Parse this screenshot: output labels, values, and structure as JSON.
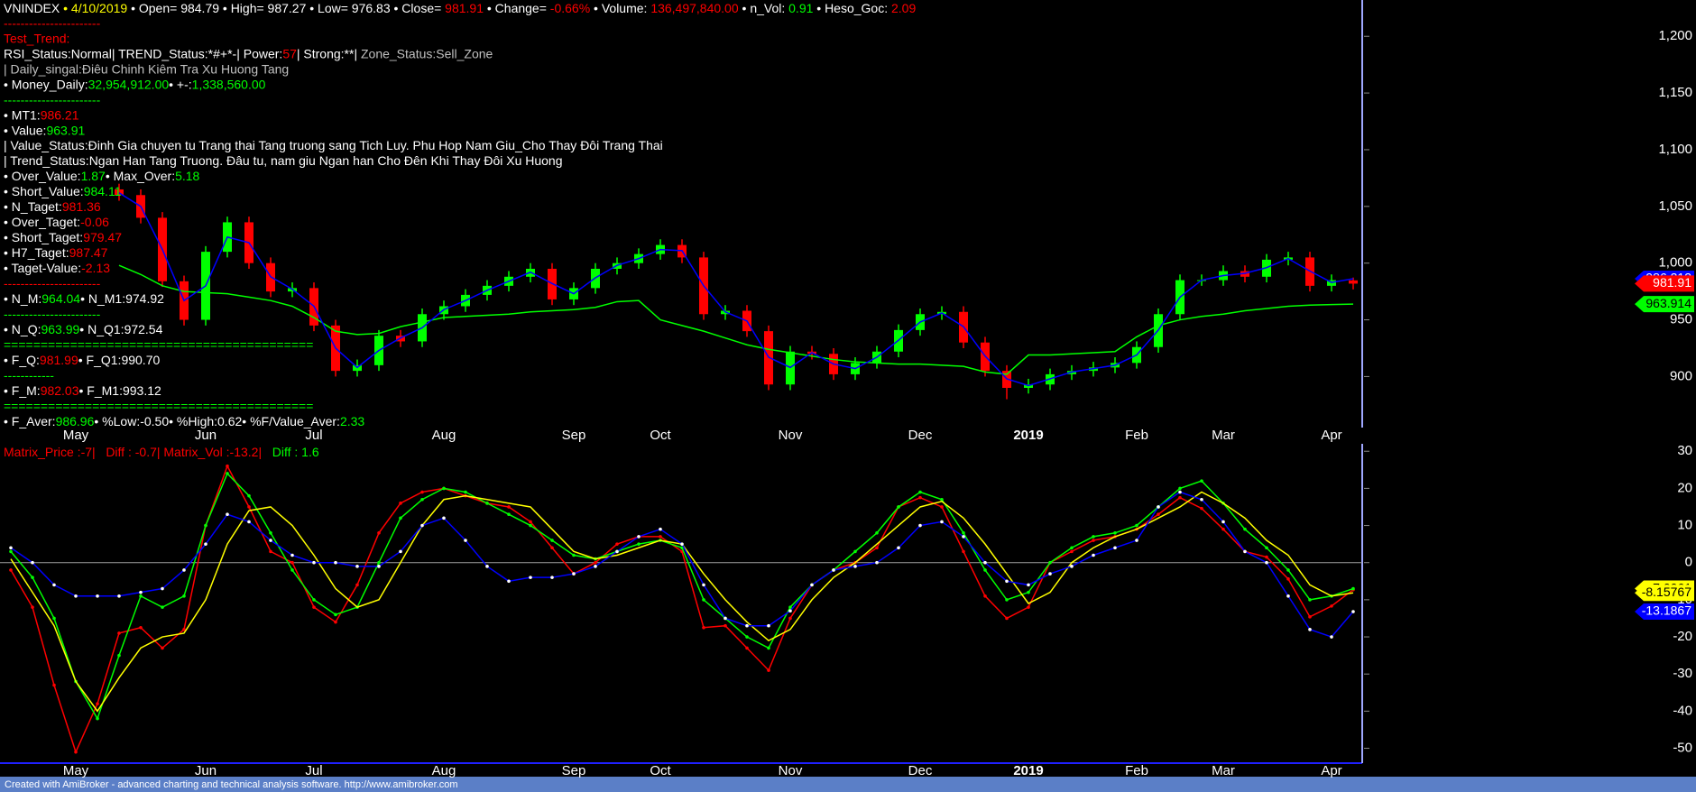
{
  "header_line": [
    {
      "text": "VNINDEX",
      "color": "#ffffff"
    },
    {
      "text": " • 4/10/2019",
      "color": "#ffff00"
    },
    {
      "text": " • Open= 984.79 • High= 987.27 • Low= 976.83 • Close= ",
      "color": "#ffffff"
    },
    {
      "text": "981.91",
      "color": "#ff0000"
    },
    {
      "text": " • Change= ",
      "color": "#ffffff"
    },
    {
      "text": "-0.66%",
      "color": "#ff0000"
    },
    {
      "text": " • Volume: ",
      "color": "#ffffff"
    },
    {
      "text": "136,497,840.00",
      "color": "#ff0000"
    },
    {
      "text": " • n_Vol: ",
      "color": "#ffffff"
    },
    {
      "text": "0.91",
      "color": "#00ff00"
    },
    {
      "text": " • Heso_Goc: ",
      "color": "#ffffff"
    },
    {
      "text": "2.09",
      "color": "#ff0000"
    }
  ],
  "info_lines": [
    [
      {
        "text": "-----------------------",
        "color": "#ff0000"
      }
    ],
    [
      {
        "text": "Test_Trend:",
        "color": "#ff0000"
      }
    ],
    [
      {
        "text": "RSI_Status:Normal| TREND_Status:*#+*-| Power:",
        "color": "#ffffff"
      },
      {
        "text": "57",
        "color": "#ff0000"
      },
      {
        "text": "| Strong:**| ",
        "color": "#ffffff"
      },
      {
        "text": "Zone_Status:Sell_Zone",
        "color": "#c0c0c0"
      }
    ],
    [
      {
        "text": "| Daily_singal:Điêu Chinh Kiêm Tra Xu Huong Tang",
        "color": "#c0c0c0"
      }
    ],
    [
      {
        "text": "• Money_Daily:",
        "color": "#ffffff"
      },
      {
        "text": "32,954,912.00",
        "color": "#00ff00"
      },
      {
        "text": "• +-:",
        "color": "#ffffff"
      },
      {
        "text": "1,338,560.00",
        "color": "#00ff00"
      }
    ],
    [
      {
        "text": "-----------------------",
        "color": "#00ff00"
      }
    ],
    [
      {
        "text": "• MT1:",
        "color": "#ffffff"
      },
      {
        "text": "986.21",
        "color": "#ff0000"
      }
    ],
    [
      {
        "text": "• Value:",
        "color": "#ffffff"
      },
      {
        "text": "963.91",
        "color": "#00ff00"
      }
    ],
    [
      {
        "text": "| Value_Status:Đinh Gia chuyen tu Trang thai Tang truong sang Tich Luy. Phu Hop Nam Giu_Cho Thay Đôi Trang Thai",
        "color": "#ffffff"
      }
    ],
    [
      {
        "text": "| Trend_Status:Ngan Han Tang Truong. Đâu tu, nam giu Ngan han Cho Đên Khi Thay Đôi Xu Huong",
        "color": "#ffffff"
      }
    ],
    [
      {
        "text": "• Over_Value:",
        "color": "#ffffff"
      },
      {
        "text": "1.87",
        "color": "#00ff00"
      },
      {
        "text": "• Max_Over:",
        "color": "#ffffff"
      },
      {
        "text": "5.18",
        "color": "#00ff00"
      }
    ],
    [
      {
        "text": "• Short_Value:",
        "color": "#ffffff"
      },
      {
        "text": "984.11",
        "color": "#00ff00"
      }
    ],
    [
      {
        "text": "• N_Taget:",
        "color": "#ffffff"
      },
      {
        "text": "981.36",
        "color": "#ff0000"
      }
    ],
    [
      {
        "text": "• Over_Taget:",
        "color": "#ffffff"
      },
      {
        "text": "-0.06",
        "color": "#ff0000"
      }
    ],
    [
      {
        "text": "• Short_Taget:",
        "color": "#ffffff"
      },
      {
        "text": "979.47",
        "color": "#ff0000"
      }
    ],
    [
      {
        "text": "• H7_Taget:",
        "color": "#ffffff"
      },
      {
        "text": "987.47",
        "color": "#ff0000"
      }
    ],
    [
      {
        "text": "• Taget-Value:",
        "color": "#ffffff"
      },
      {
        "text": "-2.13",
        "color": "#ff0000"
      }
    ],
    [
      {
        "text": "-----------------------",
        "color": "#ff0000"
      }
    ],
    [
      {
        "text": "• N_M:",
        "color": "#ffffff"
      },
      {
        "text": "964.04",
        "color": "#00ff00"
      },
      {
        "text": "• N_M1:",
        "color": "#ffffff"
      },
      {
        "text": "974.92",
        "color": "#ffffff"
      }
    ],
    [
      {
        "text": "-----------------------",
        "color": "#00ff00"
      }
    ],
    [
      {
        "text": "• N_Q:",
        "color": "#ffffff"
      },
      {
        "text": "963.99",
        "color": "#00ff00"
      },
      {
        "text": "• N_Q1:",
        "color": "#ffffff"
      },
      {
        "text": "972.54",
        "color": "#ffffff"
      }
    ],
    [
      {
        "text": "==========================================",
        "color": "#00ff00"
      }
    ],
    [
      {
        "text": "• F_Q:",
        "color": "#ffffff"
      },
      {
        "text": "981.99",
        "color": "#ff0000"
      },
      {
        "text": "• F_Q1:",
        "color": "#ffffff"
      },
      {
        "text": "990.70",
        "color": "#ffffff"
      }
    ],
    [
      {
        "text": "------------",
        "color": "#00ff00"
      }
    ],
    [
      {
        "text": "• F_M:",
        "color": "#ffffff"
      },
      {
        "text": "982.03",
        "color": "#ff0000"
      },
      {
        "text": "• F_M1:",
        "color": "#ffffff"
      },
      {
        "text": "993.12",
        "color": "#ffffff"
      }
    ],
    [
      {
        "text": "==========================================",
        "color": "#00ff00"
      }
    ],
    [
      {
        "text": "• F_Aver:",
        "color": "#ffffff"
      },
      {
        "text": "986.96",
        "color": "#00ff00"
      },
      {
        "text": "• %Low:-0.50• %High:0.62• %F/Value_Aver:",
        "color": "#ffffff"
      },
      {
        "text": "2.33",
        "color": "#00ff00"
      }
    ]
  ],
  "indicator_line": [
    {
      "text": "Matrix_Price :-7|   Diff : -0.7| Matrix_Vol :-13.2|",
      "color": "#ff0000"
    },
    {
      "text": "   Diff : 1.6",
      "color": "#00ff00"
    }
  ],
  "footer": "Created with AmiBroker - advanced charting and technical analysis software. http://www.amibroker.com",
  "chart_data": [
    {
      "type": "candlestick",
      "categories": [
        null,
        null,
        null,
        "May",
        null,
        null,
        null,
        null,
        null,
        "Jun",
        null,
        null,
        null,
        null,
        "Jul",
        null,
        null,
        null,
        null,
        null,
        "Aug",
        null,
        null,
        null,
        null,
        null,
        "Sep",
        null,
        null,
        null,
        "Oct",
        null,
        null,
        null,
        null,
        null,
        "Nov",
        null,
        null,
        null,
        null,
        null,
        "Dec",
        null,
        null,
        null,
        null,
        "2019",
        null,
        null,
        null,
        null,
        "Feb",
        null,
        null,
        null,
        "Mar",
        null,
        null,
        null,
        null,
        "Apr",
        null
      ],
      "open": [
        null,
        null,
        null,
        null,
        null,
        1065,
        1060,
        1040,
        984,
        950,
        1010,
        1036,
        1000,
        975,
        978,
        945,
        905,
        910,
        936,
        931,
        955,
        962,
        972,
        980,
        988,
        995,
        968,
        978,
        995,
        1000,
        1008,
        1016,
        1005,
        955,
        958,
        940,
        893,
        922,
        920,
        902,
        912,
        922,
        941,
        955,
        957,
        930,
        905,
        890,
        893,
        902,
        905,
        908,
        912,
        926,
        955,
        985,
        985,
        993,
        988,
        1003,
        1005,
        980,
        984.79
      ],
      "high": [
        null,
        null,
        null,
        null,
        null,
        1070,
        1065,
        1045,
        989,
        1015,
        1041,
        1041,
        1005,
        983,
        983,
        950,
        915,
        941,
        941,
        960,
        967,
        977,
        985,
        993,
        1000,
        1000,
        983,
        1000,
        1005,
        1013,
        1021,
        1021,
        1010,
        963,
        963,
        945,
        927,
        927,
        925,
        917,
        927,
        946,
        960,
        962,
        962,
        935,
        910,
        898,
        907,
        910,
        913,
        917,
        931,
        960,
        990,
        990,
        998,
        998,
        1008,
        1010,
        1010,
        990,
        987.27
      ],
      "low": [
        null,
        null,
        null,
        null,
        null,
        1055,
        1035,
        979,
        945,
        945,
        1005,
        995,
        970,
        970,
        940,
        900,
        900,
        905,
        926,
        926,
        950,
        957,
        967,
        975,
        983,
        963,
        963,
        973,
        990,
        995,
        1003,
        1000,
        950,
        950,
        935,
        888,
        888,
        915,
        897,
        897,
        907,
        917,
        936,
        950,
        925,
        900,
        880,
        885,
        888,
        897,
        900,
        903,
        907,
        921,
        950,
        980,
        980,
        983,
        983,
        998,
        975,
        975,
        976.83
      ],
      "close": [
        null,
        null,
        null,
        null,
        null,
        1060,
        1040,
        984,
        950,
        1010,
        1036,
        1000,
        975,
        978,
        945,
        905,
        910,
        936,
        931,
        955,
        962,
        972,
        980,
        988,
        995,
        968,
        978,
        995,
        1000,
        1008,
        1016,
        1005,
        955,
        958,
        940,
        893,
        922,
        920,
        902,
        912,
        922,
        941,
        955,
        957,
        930,
        905,
        890,
        893,
        902,
        905,
        908,
        912,
        926,
        955,
        985,
        985,
        993,
        988,
        1003,
        1005,
        980,
        985,
        981.91
      ],
      "up_color": "#00ff00",
      "down_color": "#ff0000",
      "close_label_color": "#ff0000",
      "series": [
        {
          "color": "#00ff00",
          "label_color": "#00ff00",
          "values": [
            null,
            null,
            null,
            null,
            null,
            998,
            990,
            980,
            975,
            974,
            973,
            970,
            967,
            962,
            952,
            940,
            937,
            938,
            944,
            948,
            952,
            953,
            954,
            955,
            957,
            958,
            959,
            961,
            966,
            967,
            950,
            945,
            940,
            934,
            928,
            924,
            921,
            918,
            915,
            913,
            912,
            911,
            911,
            910,
            909,
            904,
            902,
            919,
            919,
            920,
            921,
            922,
            935,
            945,
            950,
            953,
            955,
            958,
            960,
            962,
            963,
            963.5,
            963.914
          ]
        },
        {
          "color": "#0000ff",
          "label_color": "#0000ff",
          "values": [
            null,
            null,
            null,
            null,
            null,
            1062,
            1050,
            1012,
            967,
            980,
            1023,
            1018,
            988,
            977,
            962,
            925,
            908,
            923,
            934,
            943,
            959,
            967,
            976,
            984,
            992,
            982,
            973,
            987,
            998,
            1004,
            1012,
            1011,
            980,
            957,
            949,
            917,
            908,
            921,
            911,
            907,
            917,
            932,
            948,
            956,
            944,
            918,
            898,
            892,
            898,
            904,
            907,
            910,
            919,
            941,
            970,
            985,
            989,
            991,
            996,
            1004,
            993,
            983,
            986.213
          ]
        }
      ],
      "ylim": [
        855,
        1232
      ],
      "yticks": [
        900,
        950,
        {
          "value": 1000,
          "label": "1,000"
        },
        {
          "value": 1050,
          "label": "1,050"
        },
        {
          "value": 1100,
          "label": "1,100"
        },
        {
          "value": 1150,
          "label": "1,150"
        },
        {
          "value": 1200,
          "label": "1,200"
        }
      ]
    },
    {
      "type": "line",
      "zero_line": true,
      "ylim": [
        -54,
        32
      ],
      "yticks": [
        30,
        20,
        10,
        0,
        -10,
        -20,
        -30,
        -40,
        -50
      ],
      "series": [
        {
          "color": "#ff0000",
          "marker_color": "#ff0000",
          "values": [
            -2,
            -12,
            -33,
            -51,
            -38,
            -19,
            -17.5,
            -23,
            -18,
            10,
            26,
            15,
            3,
            0,
            -12,
            -16,
            -6,
            8,
            16,
            19,
            20,
            18,
            16,
            15,
            11,
            4,
            -3,
            0,
            5,
            7,
            7,
            3,
            -17.5,
            -17,
            -23,
            -29,
            -15,
            -6,
            -2,
            0,
            4,
            15,
            17.5,
            15,
            3,
            -9,
            -15,
            -12,
            0,
            3,
            6,
            7,
            9,
            13,
            17.5,
            14.6,
            9,
            3,
            1.5,
            -4.4,
            -14.6,
            -11.7,
            -7.3
          ]
        },
        {
          "color": "#00ff00",
          "marker_color": "#00ff00",
          "label_color": "#ffff00",
          "values": [
            3,
            -4,
            -15,
            -32,
            -42,
            -25,
            -9,
            -12,
            -9,
            10,
            24,
            18,
            8,
            -2,
            -10,
            -14,
            -12,
            0,
            12,
            17,
            20,
            19,
            16,
            13,
            10,
            6,
            2,
            1,
            3,
            5,
            6,
            4,
            -10,
            -15,
            -20,
            -23,
            -12,
            -6,
            -2,
            3,
            8,
            15,
            19,
            17,
            8,
            -2,
            -10,
            -8,
            0,
            4,
            7,
            8,
            10,
            15,
            20,
            22,
            16,
            9,
            4,
            -2,
            -10,
            -9,
            -7.0061
          ]
        },
        {
          "color": "#ffff00",
          "label_color": "#ffff00",
          "values": [
            1,
            -8,
            -17,
            -32,
            -40,
            -31,
            -23,
            -20,
            -19,
            -10,
            5,
            14,
            15,
            10,
            2,
            -7,
            -12,
            -10,
            0,
            10,
            17,
            18,
            17,
            16,
            15,
            9,
            3,
            1,
            2,
            4,
            6,
            5,
            -3,
            -10,
            -16,
            -21,
            -18,
            -10,
            -4,
            0,
            5,
            10,
            15,
            16.5,
            12,
            5,
            -3,
            -11,
            -8,
            0,
            4,
            7,
            9,
            12,
            15,
            19,
            16,
            12,
            6,
            2,
            -6,
            -9,
            -8.15767
          ]
        },
        {
          "color": "#0000ff",
          "marker_color": "#ffffff",
          "label_color": "#0000ff",
          "values": [
            4,
            0,
            -6,
            -9,
            -9,
            -9,
            -8,
            -7,
            -2,
            5,
            13,
            11,
            6,
            2,
            0,
            0,
            -1,
            -1,
            3,
            10,
            12,
            6,
            -1,
            -5,
            -4,
            -4,
            -3,
            -1,
            3,
            7,
            9,
            5,
            -6,
            -15,
            -17,
            -17,
            -13,
            -6,
            -2,
            -1,
            0,
            4,
            10,
            11,
            7,
            0,
            -5,
            -6,
            -3,
            -1,
            2,
            4,
            6,
            15,
            19,
            17,
            11,
            3,
            0,
            -9,
            -18,
            -20,
            -13.1867
          ]
        }
      ]
    }
  ]
}
